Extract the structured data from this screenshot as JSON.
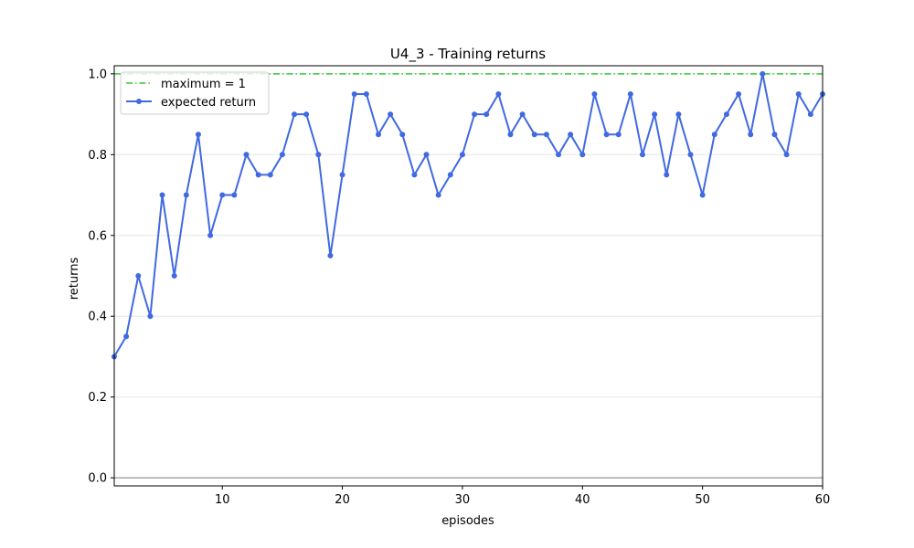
{
  "chart_data": {
    "type": "line",
    "title": "U4_3 - Training returns",
    "xlabel": "episodes",
    "ylabel": "returns",
    "xlim": [
      1,
      60
    ],
    "ylim": [
      -0.02,
      1.02
    ],
    "xticks": [
      "10",
      "20",
      "30",
      "40",
      "50",
      "60"
    ],
    "yticks": [
      "0.0",
      "0.2",
      "0.4",
      "0.6",
      "0.8",
      "1.0"
    ],
    "grid": "horizontal",
    "legend_position": "top-left",
    "maximum_line": {
      "name": "maximum = 1",
      "value": 1,
      "color": "#32cd32",
      "style": "dash-dot"
    },
    "zero_line": {
      "value": 0,
      "color": "#808080"
    },
    "series": [
      {
        "name": "expected return",
        "color": "#4169e1",
        "marker": "circle",
        "x": [
          1,
          2,
          3,
          4,
          5,
          6,
          7,
          8,
          9,
          10,
          11,
          12,
          13,
          14,
          15,
          16,
          17,
          18,
          19,
          20,
          21,
          22,
          23,
          24,
          25,
          26,
          27,
          28,
          29,
          30,
          31,
          32,
          33,
          34,
          35,
          36,
          37,
          38,
          39,
          40,
          41,
          42,
          43,
          44,
          45,
          46,
          47,
          48,
          49,
          50,
          51,
          52,
          53,
          54,
          55,
          56,
          57,
          58,
          59,
          60
        ],
        "values": [
          0.3,
          0.35,
          0.5,
          0.4,
          0.7,
          0.5,
          0.7,
          0.85,
          0.6,
          0.7,
          0.7,
          0.8,
          0.75,
          0.75,
          0.8,
          0.9,
          0.9,
          0.8,
          0.55,
          0.75,
          0.95,
          0.95,
          0.85,
          0.9,
          0.85,
          0.75,
          0.8,
          0.7,
          0.75,
          0.8,
          0.9,
          0.9,
          0.95,
          0.85,
          0.9,
          0.85,
          0.85,
          0.8,
          0.85,
          0.8,
          0.95,
          0.85,
          0.85,
          0.95,
          0.8,
          0.9,
          0.75,
          0.9,
          0.8,
          0.7,
          0.85,
          0.9,
          0.95,
          0.85,
          1.0,
          0.85,
          0.8,
          0.95,
          0.9,
          0.95
        ]
      }
    ]
  }
}
